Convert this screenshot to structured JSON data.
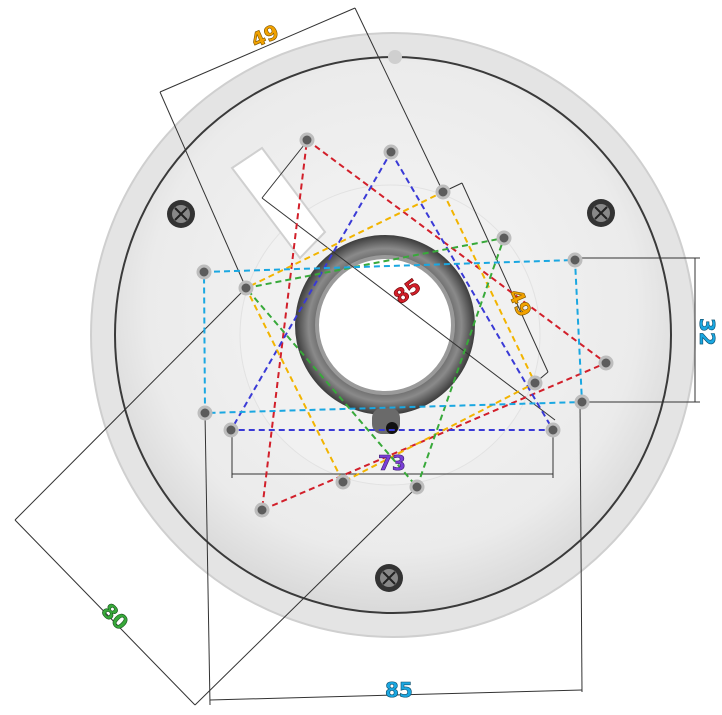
{
  "dimensions": {
    "top_spacing": "49",
    "diagonal_right": "49",
    "red_triangle_diag": "85",
    "right_rect_height": "32",
    "purple_width": "73",
    "green_diag": "80",
    "bottom_width": "85"
  },
  "colors": {
    "orange": "#f2a200",
    "red": "#d21f2a",
    "cyan": "#1aa7e1",
    "purple": "#7a3fd6",
    "green": "#38a93a",
    "blue_dash": "#2a6fdb",
    "yellow_dash": "#f2b400",
    "plate": "#eeeeee",
    "rim": "#d8d8d8",
    "screw": "#333333"
  },
  "icons": {
    "screw": "screw-icon",
    "hole": "mounting-hole-icon"
  }
}
